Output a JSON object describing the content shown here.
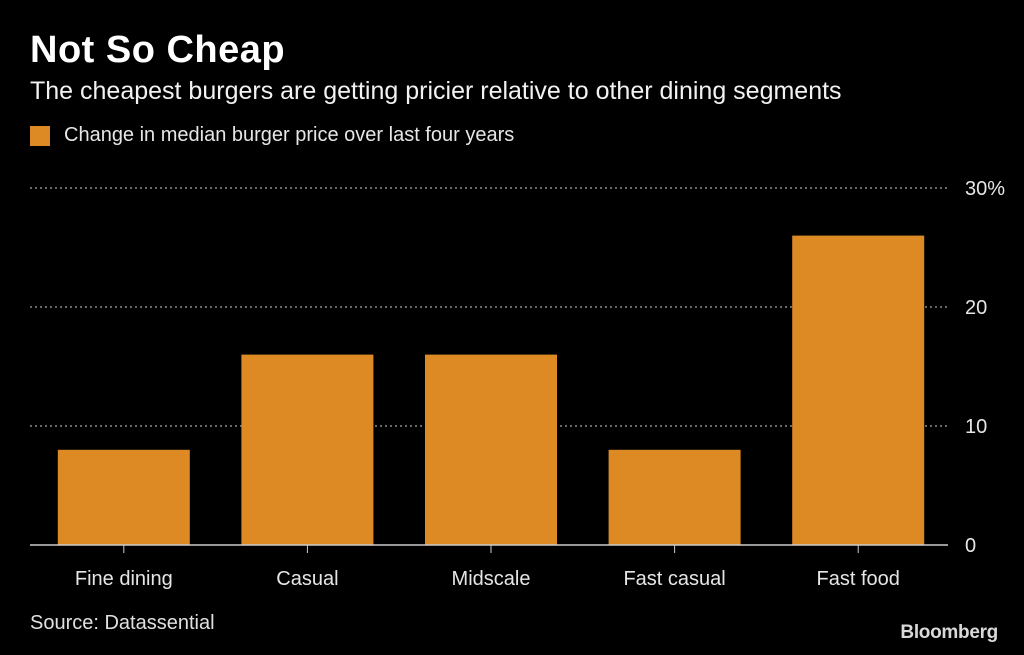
{
  "title": "Not So Cheap",
  "subtitle": "The cheapest burgers are getting pricier relative to other dining segments",
  "source": "Source: Datassential",
  "brand": "Bloomberg",
  "colors": {
    "background": "#000000",
    "bar": "#dd8a25",
    "grid": "#8a8a8a",
    "axis": "#cccccc"
  },
  "chart_data": {
    "type": "bar",
    "title": "Not So Cheap",
    "subtitle": "The cheapest burgers are getting pricier relative to other dining segments",
    "categories": [
      "Fine dining",
      "Casual",
      "Midscale",
      "Fast casual",
      "Fast food"
    ],
    "series": [
      {
        "name": "Change in median burger price over last four years",
        "values": [
          8,
          16,
          16,
          8,
          26
        ]
      }
    ],
    "ylim": [
      0,
      30
    ],
    "yticks": [
      0,
      10,
      20,
      30
    ],
    "ytick_labels": [
      "0",
      "10",
      "20",
      "30%"
    ],
    "xlabel": "",
    "ylabel": "",
    "grid": true,
    "legend": "top-left"
  }
}
